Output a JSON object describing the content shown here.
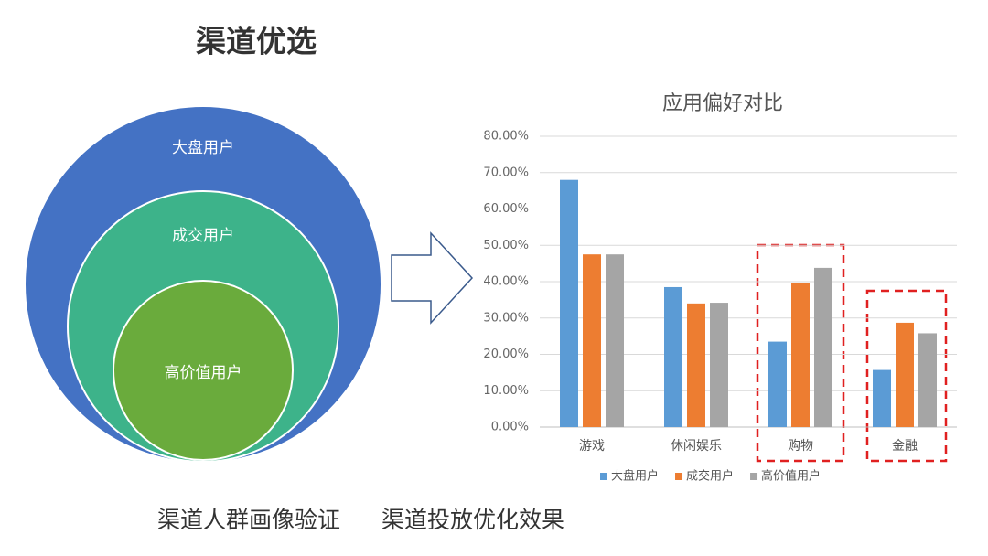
{
  "header": {
    "title": "渠道优选"
  },
  "diagram": {
    "circles": [
      "大盘用户",
      "成交用户",
      "高价值用户"
    ]
  },
  "captions": [
    "渠道人群画像验证",
    "渠道投放优化效果"
  ],
  "chart_data": {
    "type": "bar",
    "title": "应用偏好对比",
    "categories": [
      "游戏",
      "休闲娱乐",
      "购物",
      "金融"
    ],
    "series": [
      {
        "name": "大盘用户",
        "color": "#5b9bd5",
        "values": [
          68,
          38.5,
          23.5,
          15.7
        ]
      },
      {
        "name": "成交用户",
        "color": "#ed7d31",
        "values": [
          47.5,
          34,
          39.7,
          28.7
        ]
      },
      {
        "name": "高价值用户",
        "color": "#a5a5a5",
        "values": [
          47.5,
          34.2,
          43.8,
          25.8
        ]
      }
    ],
    "ylim": [
      0,
      80
    ],
    "yticks": [
      {
        "value": 0,
        "label": "0.00%"
      },
      {
        "value": 10,
        "label": "10.00%"
      },
      {
        "value": 20,
        "label": "20.00%"
      },
      {
        "value": 30,
        "label": "30.00%"
      },
      {
        "value": 40,
        "label": "40.00%"
      },
      {
        "value": 50,
        "label": "50.00%"
      },
      {
        "value": 60,
        "label": "60.00%"
      },
      {
        "value": 70,
        "label": "70.00%"
      },
      {
        "value": 80,
        "label": "80.00%"
      }
    ],
    "grid": true,
    "legend": "bottom"
  }
}
